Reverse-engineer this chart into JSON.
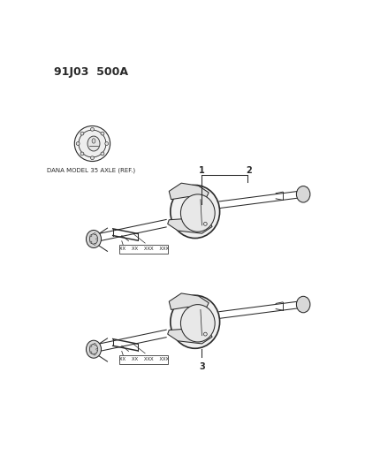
{
  "title": "91J03  500A",
  "background_color": "#ffffff",
  "fig_width": 4.14,
  "fig_height": 5.33,
  "dpi": 100,
  "title_fontsize": 9,
  "title_fontweight": "bold",
  "label_dana": "DANA MODEL 35 AXLE (REF.)",
  "label_1": "1",
  "label_2": "2",
  "label_3": "3",
  "part_tag_text": "XX  XX  XXX  XXX",
  "color": "#2a2a2a"
}
